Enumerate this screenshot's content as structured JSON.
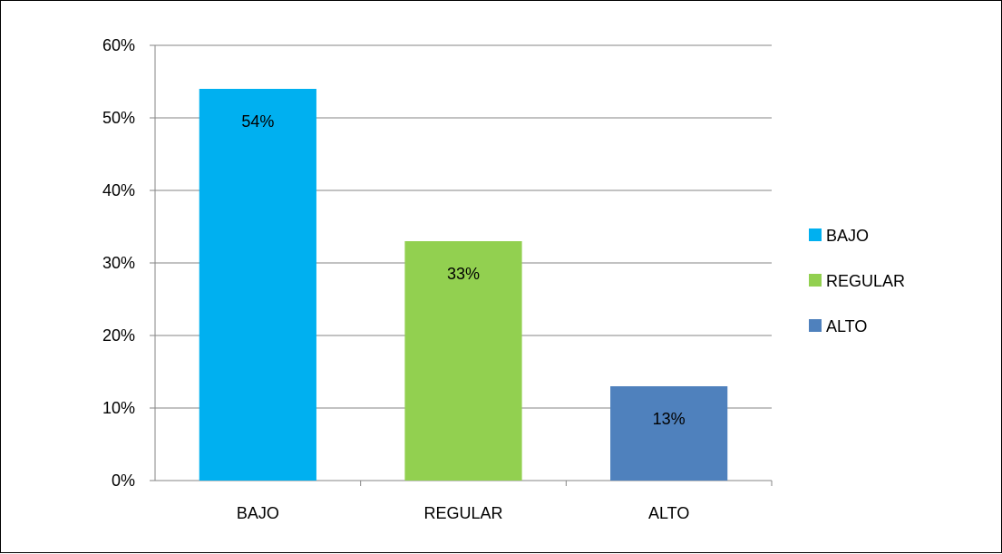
{
  "chart_data": {
    "type": "bar",
    "title": "",
    "xlabel": "",
    "ylabel": "",
    "categories": [
      "BAJO",
      "REGULAR",
      "ALTO"
    ],
    "values": [
      54,
      33,
      13
    ],
    "data_labels": [
      "54%",
      "33%",
      "13%"
    ],
    "colors": [
      "#00B0F0",
      "#92D050",
      "#4F81BD"
    ],
    "ylim": [
      0,
      60
    ],
    "yticks": [
      0,
      10,
      20,
      30,
      40,
      50,
      60
    ],
    "ytick_labels": [
      "0%",
      "10%",
      "20%",
      "30%",
      "40%",
      "50%",
      "60%"
    ],
    "grid": true,
    "legend": {
      "position": "right",
      "entries": [
        {
          "label": "BAJO",
          "color": "#00B0F0"
        },
        {
          "label": "REGULAR",
          "color": "#92D050"
        },
        {
          "label": "ALTO",
          "color": "#4F81BD"
        }
      ]
    }
  }
}
